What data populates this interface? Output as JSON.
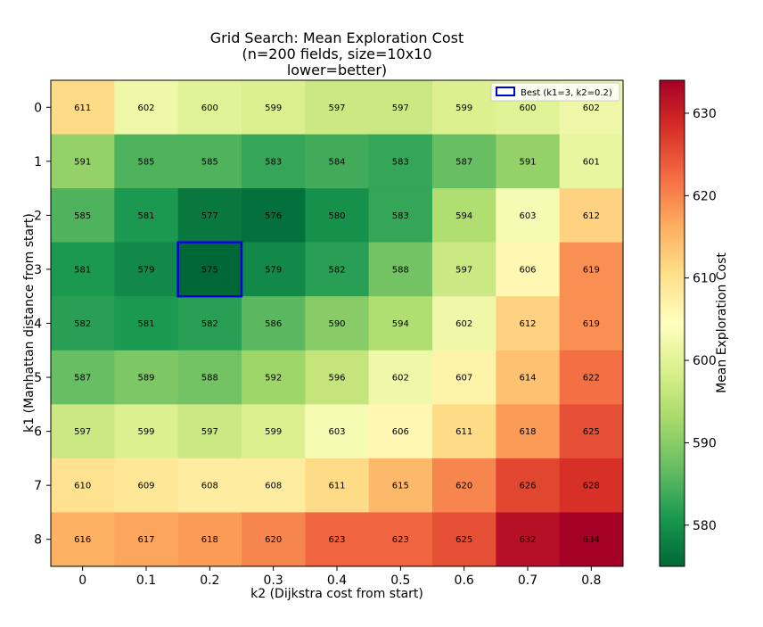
{
  "chart_data": {
    "type": "heatmap",
    "title_lines": [
      "Grid Search: Mean Exploration Cost",
      "(n=200 fields, size=10x10",
      "lower=better)"
    ],
    "xlabel": "k2 (Dijkstra cost from start)",
    "ylabel": "k1 (Manhattan distance from start)",
    "x_categories": [
      "0",
      "0.1",
      "0.2",
      "0.3",
      "0.4",
      "0.5",
      "0.6",
      "0.7",
      "0.8"
    ],
    "y_categories": [
      "0",
      "1",
      "2",
      "3",
      "4",
      "5",
      "6",
      "7",
      "8"
    ],
    "values": [
      [
        611,
        602,
        600,
        599,
        597,
        597,
        599,
        600,
        602
      ],
      [
        591,
        585,
        585,
        583,
        584,
        583,
        587,
        591,
        601
      ],
      [
        585,
        581,
        577,
        576,
        580,
        583,
        594,
        603,
        612
      ],
      [
        581,
        579,
        575,
        579,
        582,
        588,
        597,
        606,
        619
      ],
      [
        582,
        581,
        582,
        586,
        590,
        594,
        602,
        612,
        619
      ],
      [
        587,
        589,
        588,
        592,
        596,
        602,
        607,
        614,
        622
      ],
      [
        597,
        599,
        597,
        599,
        603,
        606,
        611,
        618,
        625
      ],
      [
        610,
        609,
        608,
        608,
        611,
        615,
        620,
        626,
        628
      ],
      [
        616,
        617,
        618,
        620,
        623,
        623,
        625,
        632,
        634
      ]
    ],
    "colorbar": {
      "label": "Mean Exploration Cost",
      "range": [
        575,
        634
      ],
      "ticks": [
        580,
        590,
        600,
        610,
        620,
        630
      ],
      "colormap": "RdYlGn_r"
    },
    "legend": {
      "label": "Best (k1=3, k2=0.2)",
      "position": "upper-right",
      "highlight_row": 3,
      "highlight_col": 2,
      "color": "#0000dd"
    }
  }
}
